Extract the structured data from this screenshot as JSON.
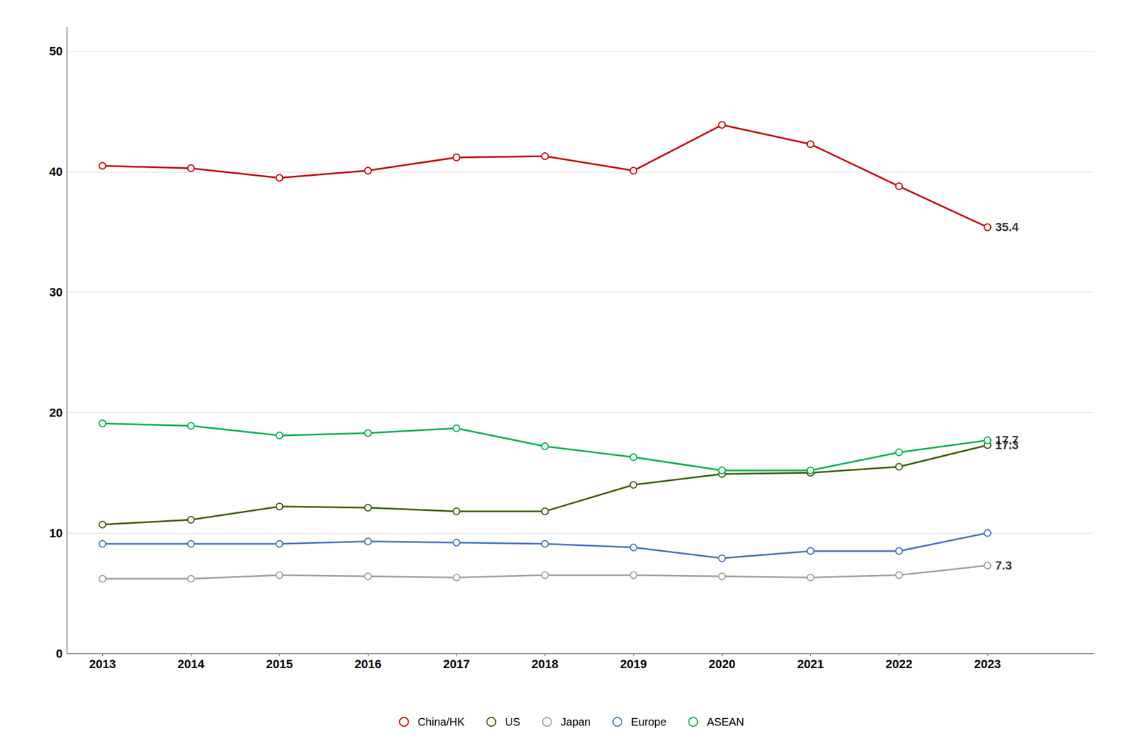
{
  "chart_data": {
    "type": "line",
    "x": [
      2013,
      2014,
      2015,
      2016,
      2017,
      2018,
      2019,
      2020,
      2021,
      2022,
      2023
    ],
    "series": [
      {
        "name": "China/HK",
        "color": "#c00000",
        "values": [
          40.5,
          40.3,
          39.5,
          40.1,
          41.2,
          41.3,
          40.1,
          43.9,
          42.3,
          38.8,
          35.4
        ]
      },
      {
        "name": "US",
        "color": "#3a5e00",
        "values": [
          10.7,
          11.1,
          12.2,
          12.1,
          11.8,
          11.8,
          14.0,
          14.9,
          15.0,
          15.5,
          17.3
        ]
      },
      {
        "name": "Japan",
        "color": "#a0a0a0",
        "values": [
          6.2,
          6.2,
          6.5,
          6.4,
          6.3,
          6.5,
          6.5,
          6.4,
          6.3,
          6.5,
          7.3
        ]
      },
      {
        "name": "Europe",
        "color": "#4472c4",
        "values": [
          9.1,
          9.1,
          9.1,
          9.3,
          9.2,
          9.1,
          8.8,
          7.9,
          8.5,
          8.5,
          10.0
        ]
      },
      {
        "name": "ASEAN",
        "color": "#00b050",
        "values": [
          19.1,
          18.9,
          18.1,
          18.3,
          18.7,
          17.2,
          16.3,
          15.2,
          15.2,
          16.7,
          17.7
        ]
      }
    ],
    "xlim": [
      2012.6,
      2024.2
    ],
    "xticks": [
      2013,
      2014,
      2015,
      2016,
      2017,
      2018,
      2019,
      2020,
      2021,
      2022,
      2023
    ],
    "ylim": [
      0,
      52
    ],
    "yticks": [
      0,
      10,
      20,
      30,
      40,
      50
    ],
    "grid": true,
    "legend": "bottom",
    "marker": "circle",
    "annotations": [
      {
        "text": "35.4",
        "x": 2023,
        "y": 35.4
      },
      {
        "text": "17.7",
        "x": 2023,
        "y": 17.7
      },
      {
        "text": "17.3",
        "x": 2023,
        "y": 17.3
      },
      {
        "text": "7.3",
        "x": 2023,
        "y": 7.3
      }
    ]
  }
}
